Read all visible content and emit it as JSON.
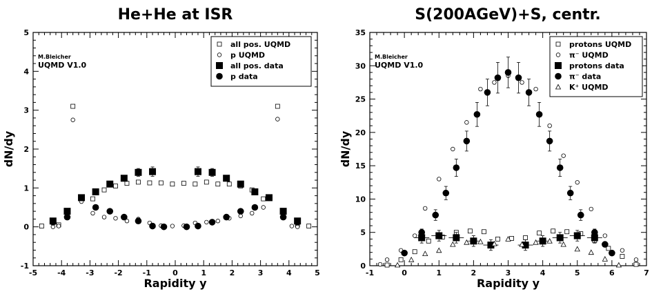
{
  "chart_data": [
    {
      "type": "scatter",
      "title": "He+He at ISR",
      "xlabel": "Rapidity y",
      "ylabel": "dN/dy",
      "xlim": [
        -5,
        5
      ],
      "ylim": [
        -1,
        5
      ],
      "xticks": [
        -5,
        -4,
        -3,
        -2,
        -1,
        0,
        1,
        2,
        3,
        4,
        5
      ],
      "yticks": [
        -1,
        0,
        1,
        2,
        3,
        4,
        5
      ],
      "grid": false,
      "legend_position": "top-right",
      "annotations": [
        "M.Bleicher",
        "UQMD V1.0"
      ],
      "series": [
        {
          "name": "all pos. UQMD",
          "marker": "open-square",
          "points": [
            [
              -4.7,
              0.02
            ],
            [
              -4.1,
              0.05
            ],
            [
              -3.6,
              3.1
            ],
            [
              -2.9,
              0.72
            ],
            [
              -2.5,
              0.95
            ],
            [
              -2.1,
              1.05
            ],
            [
              -1.7,
              1.12
            ],
            [
              -1.3,
              1.15
            ],
            [
              -0.9,
              1.13
            ],
            [
              -0.5,
              1.13
            ],
            [
              -0.1,
              1.1
            ],
            [
              0.3,
              1.12
            ],
            [
              0.7,
              1.1
            ],
            [
              1.1,
              1.15
            ],
            [
              1.5,
              1.1
            ],
            [
              1.9,
              1.1
            ],
            [
              2.3,
              1.05
            ],
            [
              2.7,
              0.95
            ],
            [
              3.1,
              0.72
            ],
            [
              3.6,
              3.1
            ],
            [
              4.3,
              0.05
            ],
            [
              4.7,
              0.02
            ]
          ]
        },
        {
          "name": "p UQMD",
          "marker": "open-circle",
          "points": [
            [
              -4.3,
              0.0
            ],
            [
              -4.1,
              0.02
            ],
            [
              -3.6,
              2.75
            ],
            [
              -3.3,
              0.65
            ],
            [
              -2.9,
              0.35
            ],
            [
              -2.5,
              0.25
            ],
            [
              -2.1,
              0.22
            ],
            [
              -1.7,
              0.15
            ],
            [
              -1.3,
              0.2
            ],
            [
              -0.9,
              0.1
            ],
            [
              -0.5,
              0.03
            ],
            [
              -0.1,
              0.02
            ],
            [
              0.3,
              0.03
            ],
            [
              0.7,
              0.1
            ],
            [
              1.1,
              0.12
            ],
            [
              1.5,
              0.15
            ],
            [
              1.9,
              0.22
            ],
            [
              2.3,
              0.28
            ],
            [
              2.7,
              0.35
            ],
            [
              3.1,
              0.5
            ],
            [
              3.6,
              2.77
            ],
            [
              4.1,
              0.02
            ],
            [
              4.3,
              0.0
            ]
          ]
        },
        {
          "name": "all pos. data",
          "marker": "filled-square",
          "points": [
            [
              -4.3,
              0.15,
              0.05
            ],
            [
              -3.8,
              0.4,
              0.05
            ],
            [
              -3.3,
              0.75,
              0.05
            ],
            [
              -2.8,
              0.9,
              0.05
            ],
            [
              -2.3,
              1.1,
              0.06
            ],
            [
              -1.8,
              1.25,
              0.07
            ],
            [
              -1.3,
              1.4,
              0.1
            ],
            [
              -0.8,
              1.42,
              0.12
            ],
            [
              0.8,
              1.42,
              0.12
            ],
            [
              1.3,
              1.4,
              0.1
            ],
            [
              1.8,
              1.25,
              0.07
            ],
            [
              2.3,
              1.1,
              0.06
            ],
            [
              2.8,
              0.9,
              0.05
            ],
            [
              3.3,
              0.75,
              0.05
            ],
            [
              3.8,
              0.4,
              0.05
            ],
            [
              4.3,
              0.15,
              0.05
            ]
          ]
        },
        {
          "name": "p data",
          "marker": "filled-circle",
          "points": [
            [
              -4.3,
              0.12
            ],
            [
              -3.8,
              0.25
            ],
            [
              -3.3,
              0.75
            ],
            [
              -2.8,
              0.5
            ],
            [
              -2.3,
              0.4
            ],
            [
              -1.8,
              0.25
            ],
            [
              -1.3,
              0.15
            ],
            [
              -0.8,
              0.02
            ],
            [
              -0.4,
              0.0
            ],
            [
              0.4,
              0.0
            ],
            [
              0.8,
              0.02
            ],
            [
              1.3,
              0.12
            ],
            [
              1.8,
              0.25
            ],
            [
              2.3,
              0.4
            ],
            [
              2.8,
              0.5
            ],
            [
              3.3,
              0.75
            ],
            [
              3.8,
              0.25
            ],
            [
              4.3,
              0.12
            ]
          ]
        }
      ]
    },
    {
      "type": "scatter",
      "title": "S(200AGeV)+S, centr.",
      "xlabel": "Rapidity y",
      "ylabel": "dN/dy",
      "xlim": [
        -1,
        7
      ],
      "ylim": [
        0,
        35
      ],
      "xticks": [
        -1,
        0,
        1,
        2,
        3,
        4,
        5,
        6,
        7
      ],
      "yticks": [
        0,
        5,
        10,
        15,
        20,
        25,
        30,
        35
      ],
      "grid": false,
      "legend_position": "top-right",
      "annotations": [
        "M.Bleicher",
        "UQMD V1.0"
      ],
      "series": [
        {
          "name": "protons UQMD",
          "marker": "open-square",
          "points": [
            [
              -0.5,
              0.1
            ],
            [
              -0.1,
              0.9
            ],
            [
              0.3,
              2.1
            ],
            [
              0.7,
              3.7
            ],
            [
              1.1,
              4.3
            ],
            [
              1.5,
              5.0
            ],
            [
              1.9,
              5.2
            ],
            [
              2.3,
              5.1
            ],
            [
              2.7,
              4.0
            ],
            [
              3.1,
              4.1
            ],
            [
              3.5,
              4.2
            ],
            [
              3.9,
              4.9
            ],
            [
              4.3,
              5.2
            ],
            [
              4.7,
              5.1
            ],
            [
              5.1,
              4.8
            ],
            [
              5.5,
              3.8
            ],
            [
              5.9,
              2.6
            ],
            [
              6.3,
              1.4
            ],
            [
              6.7,
              0.2
            ]
          ]
        },
        {
          "name": "π⁻ UQMD",
          "marker": "open-circle",
          "points": [
            [
              -0.7,
              0.2
            ],
            [
              -0.5,
              0.9
            ],
            [
              -0.1,
              2.3
            ],
            [
              0.3,
              4.5
            ],
            [
              0.6,
              8.6
            ],
            [
              1.0,
              13.0
            ],
            [
              1.4,
              17.5
            ],
            [
              1.8,
              21.5
            ],
            [
              2.2,
              26.5
            ],
            [
              2.6,
              27.5
            ],
            [
              3.0,
              28.5
            ],
            [
              3.4,
              27.5
            ],
            [
              3.8,
              26.5
            ],
            [
              4.2,
              21.0
            ],
            [
              4.6,
              16.5
            ],
            [
              5.0,
              12.5
            ],
            [
              5.4,
              8.5
            ],
            [
              5.8,
              4.5
            ],
            [
              6.3,
              2.3
            ],
            [
              6.7,
              0.9
            ]
          ]
        },
        {
          "name": "protons data",
          "marker": "filled-square",
          "points": [
            [
              0.5,
              4.2,
              0.8
            ],
            [
              1.0,
              4.5,
              0.8
            ],
            [
              1.5,
              4.2,
              0.8
            ],
            [
              2.0,
              3.7,
              0.8
            ],
            [
              2.5,
              3.1,
              0.8
            ],
            [
              3.5,
              3.1,
              0.8
            ],
            [
              4.0,
              3.7,
              0.8
            ],
            [
              4.5,
              4.2,
              0.8
            ],
            [
              5.0,
              4.5,
              0.8
            ],
            [
              5.5,
              4.2,
              0.8
            ]
          ]
        },
        {
          "name": "π⁻ data",
          "marker": "filled-circle",
          "points": [
            [
              0.0,
              1.9,
              0.3
            ],
            [
              0.5,
              5.0,
              0.5
            ],
            [
              0.9,
              7.6,
              0.8
            ],
            [
              1.2,
              10.9,
              1.0
            ],
            [
              1.5,
              14.7,
              1.3
            ],
            [
              1.8,
              18.7,
              1.5
            ],
            [
              2.1,
              22.7,
              1.8
            ],
            [
              2.4,
              26.0,
              2.0
            ],
            [
              2.7,
              28.2,
              2.3
            ],
            [
              3.0,
              29.0,
              2.3
            ],
            [
              3.3,
              28.2,
              2.3
            ],
            [
              3.6,
              26.0,
              2.0
            ],
            [
              3.9,
              22.7,
              1.8
            ],
            [
              4.2,
              18.7,
              1.5
            ],
            [
              4.5,
              14.7,
              1.3
            ],
            [
              4.8,
              10.9,
              1.0
            ],
            [
              5.1,
              7.6,
              0.8
            ],
            [
              5.5,
              5.0,
              0.5
            ],
            [
              5.8,
              3.2,
              0.3
            ],
            [
              6.0,
              1.9,
              0.3
            ]
          ]
        },
        {
          "name": "K⁺ UQMD",
          "marker": "open-triangle",
          "points": [
            [
              -0.2,
              0.1
            ],
            [
              0.2,
              0.9
            ],
            [
              0.6,
              1.8
            ],
            [
              1.0,
              2.3
            ],
            [
              1.4,
              3.2
            ],
            [
              1.8,
              3.5
            ],
            [
              2.2,
              3.6
            ],
            [
              2.6,
              3.3
            ],
            [
              3.0,
              4.0
            ],
            [
              3.4,
              3.2
            ],
            [
              3.8,
              3.5
            ],
            [
              4.2,
              3.7
            ],
            [
              4.6,
              3.2
            ],
            [
              5.0,
              2.5
            ],
            [
              5.4,
              2.0
            ],
            [
              5.8,
              1.0
            ],
            [
              6.2,
              0.1
            ]
          ]
        }
      ]
    }
  ]
}
